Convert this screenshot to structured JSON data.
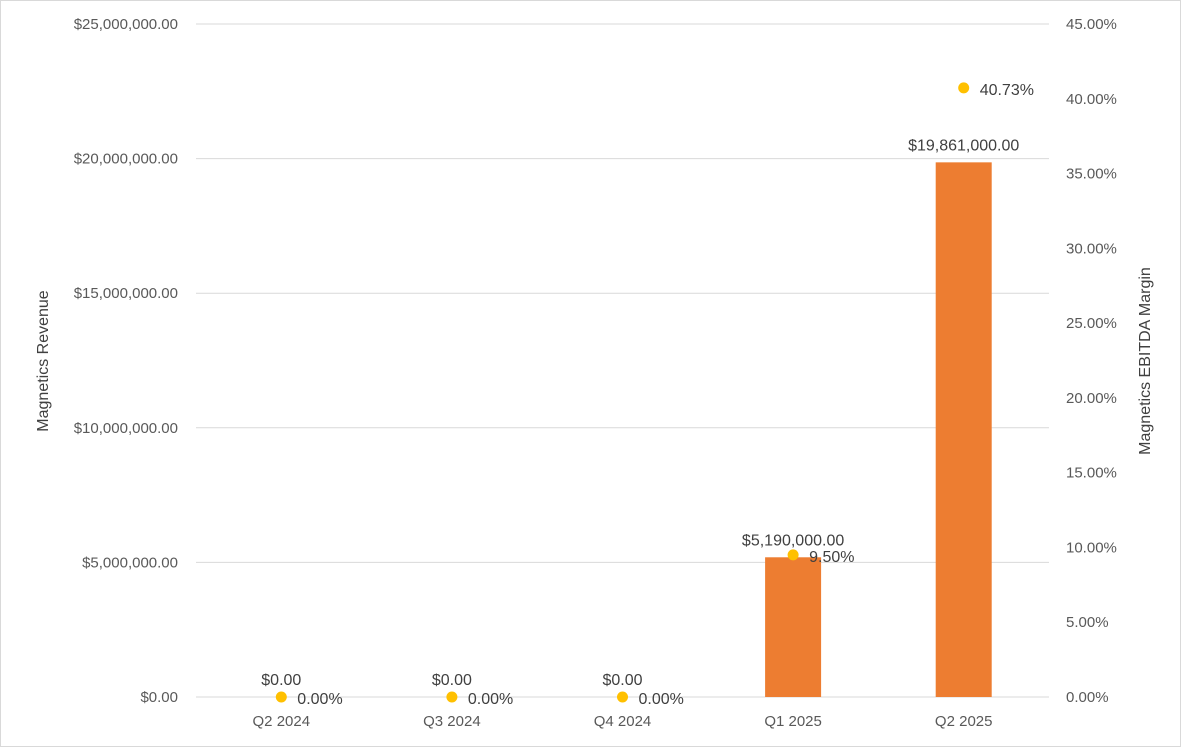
{
  "chart_data": {
    "type": "bar",
    "categories": [
      "Q2 2024",
      "Q3 2024",
      "Q4 2024",
      "Q1 2025",
      "Q2 2025"
    ],
    "series": [
      {
        "name": "",
        "type": "bar",
        "axis": "left",
        "values": [
          0,
          0,
          0,
          5190000,
          19861000
        ],
        "labels": [
          "$0.00",
          "$0.00",
          "$0.00",
          "$5,190,000.00",
          "$19,861,000.00"
        ],
        "color": "#ED7D31"
      },
      {
        "name": "",
        "type": "scatter",
        "axis": "right",
        "values": [
          0.0,
          0.0,
          0.0,
          9.5,
          40.73
        ],
        "labels": [
          "0.00%",
          "0.00%",
          "0.00%",
          "9.50%",
          "40.73%"
        ],
        "color": "#FFC000"
      }
    ],
    "ylabel": "Magnetics Revenue",
    "y2label": "Magnetics EBITDA Margin",
    "ylim": [
      0,
      25000000
    ],
    "y2lim": [
      0,
      45
    ],
    "yticks": [
      "$0.00",
      "$5,000,000.00",
      "$10,000,000.00",
      "$15,000,000.00",
      "$20,000,000.00",
      "$25,000,000.00"
    ],
    "y2ticks": [
      "0.00%",
      "5.00%",
      "10.00%",
      "15.00%",
      "20.00%",
      "25.00%",
      "30.00%",
      "35.00%",
      "40.00%",
      "45.00%"
    ],
    "grid": true,
    "legend": "none",
    "gridColor": "#d9d9d9"
  }
}
